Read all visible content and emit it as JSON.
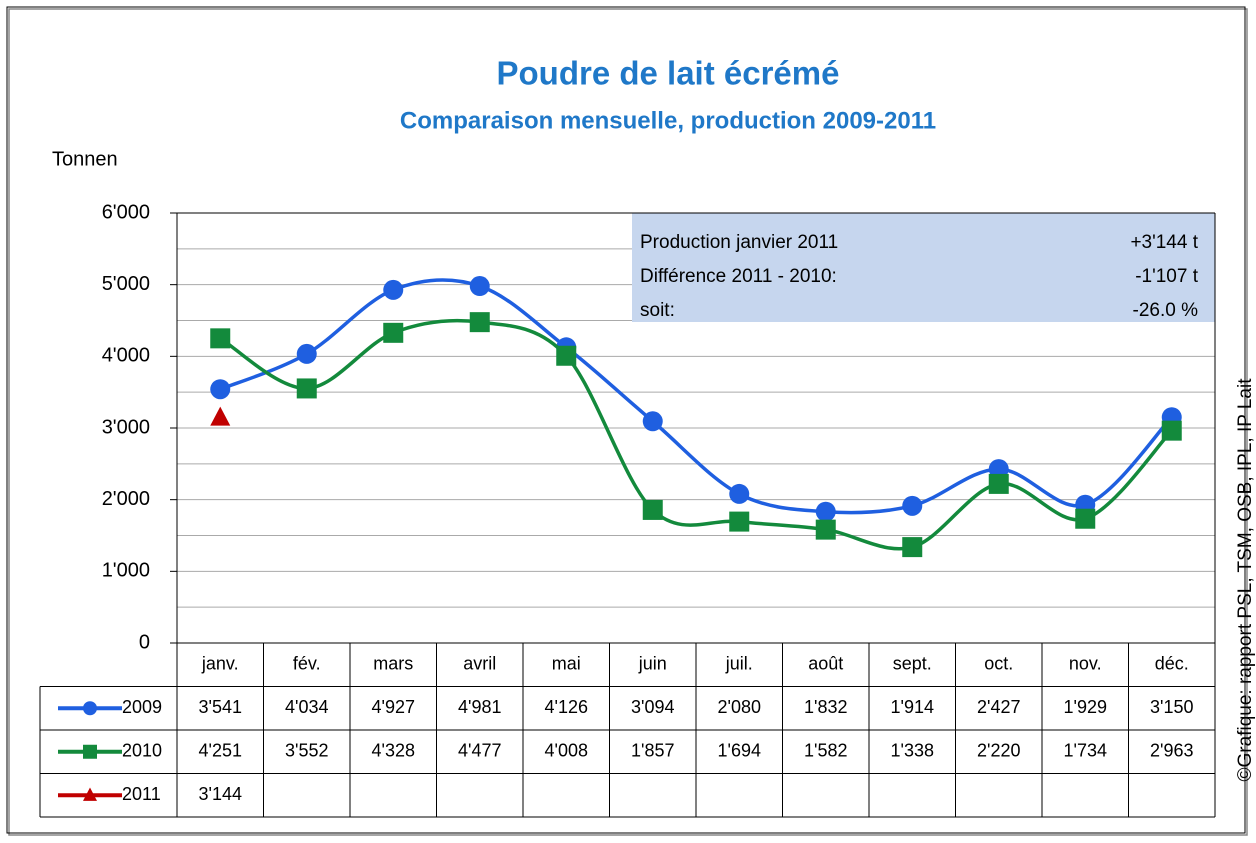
{
  "chart_data": {
    "type": "line",
    "title": "Poudre de lait écrémé",
    "subtitle": "Comparaison mensuelle, production 2009-2011",
    "y_label": "Tonnen",
    "source": "©Grafique: rapport PSL, TSM, OSB, IPL, IP Lait",
    "categories": [
      "janv.",
      "fév.",
      "mars",
      "avril",
      "mai",
      "juin",
      "juil.",
      "août",
      "sept.",
      "oct.",
      "nov.",
      "déc."
    ],
    "series": [
      {
        "name": "2009",
        "color": "#1f5fe0",
        "marker": "circle",
        "values": [
          3541,
          4034,
          4927,
          4981,
          4126,
          3094,
          2080,
          1832,
          1914,
          2427,
          1929,
          3150
        ],
        "value_labels": [
          "3'541",
          "4'034",
          "4'927",
          "4'981",
          "4'126",
          "3'094",
          "2'080",
          "1'832",
          "1'914",
          "2'427",
          "1'929",
          "3'150"
        ]
      },
      {
        "name": "2010",
        "color": "#138a3c",
        "marker": "square",
        "values": [
          4251,
          3552,
          4328,
          4477,
          4008,
          1857,
          1694,
          1582,
          1338,
          2220,
          1734,
          2963
        ],
        "value_labels": [
          "4'251",
          "3'552",
          "4'328",
          "4'477",
          "4'008",
          "1'857",
          "1'694",
          "1'582",
          "1'338",
          "2'220",
          "1'734",
          "2'963"
        ]
      },
      {
        "name": "2011",
        "color": "#c00000",
        "marker": "triangle",
        "values": [
          3144,
          null,
          null,
          null,
          null,
          null,
          null,
          null,
          null,
          null,
          null,
          null
        ],
        "value_labels": [
          "3'144",
          null,
          null,
          null,
          null,
          null,
          null,
          null,
          null,
          null,
          null,
          null
        ]
      }
    ],
    "ylim": [
      0,
      6000
    ],
    "yticks": [
      0,
      {
        "value": 1000,
        "label": "1'000"
      },
      {
        "value": 2000,
        "label": "2'000"
      },
      {
        "value": 3000,
        "label": "3'000"
      },
      {
        "value": 4000,
        "label": "4'000"
      },
      {
        "value": 5000,
        "label": "5'000"
      },
      {
        "value": 6000,
        "label": "6'000"
      }
    ],
    "minor_grid": [
      500,
      1500,
      2500,
      3500,
      4500,
      5500
    ],
    "grid": true,
    "info_box": [
      [
        "Production janvier  2011",
        "+3'144  t"
      ],
      [
        "Différence 2011 - 2010:",
        "-1'107 t"
      ],
      [
        "soit:",
        "-26.0 %"
      ]
    ]
  }
}
